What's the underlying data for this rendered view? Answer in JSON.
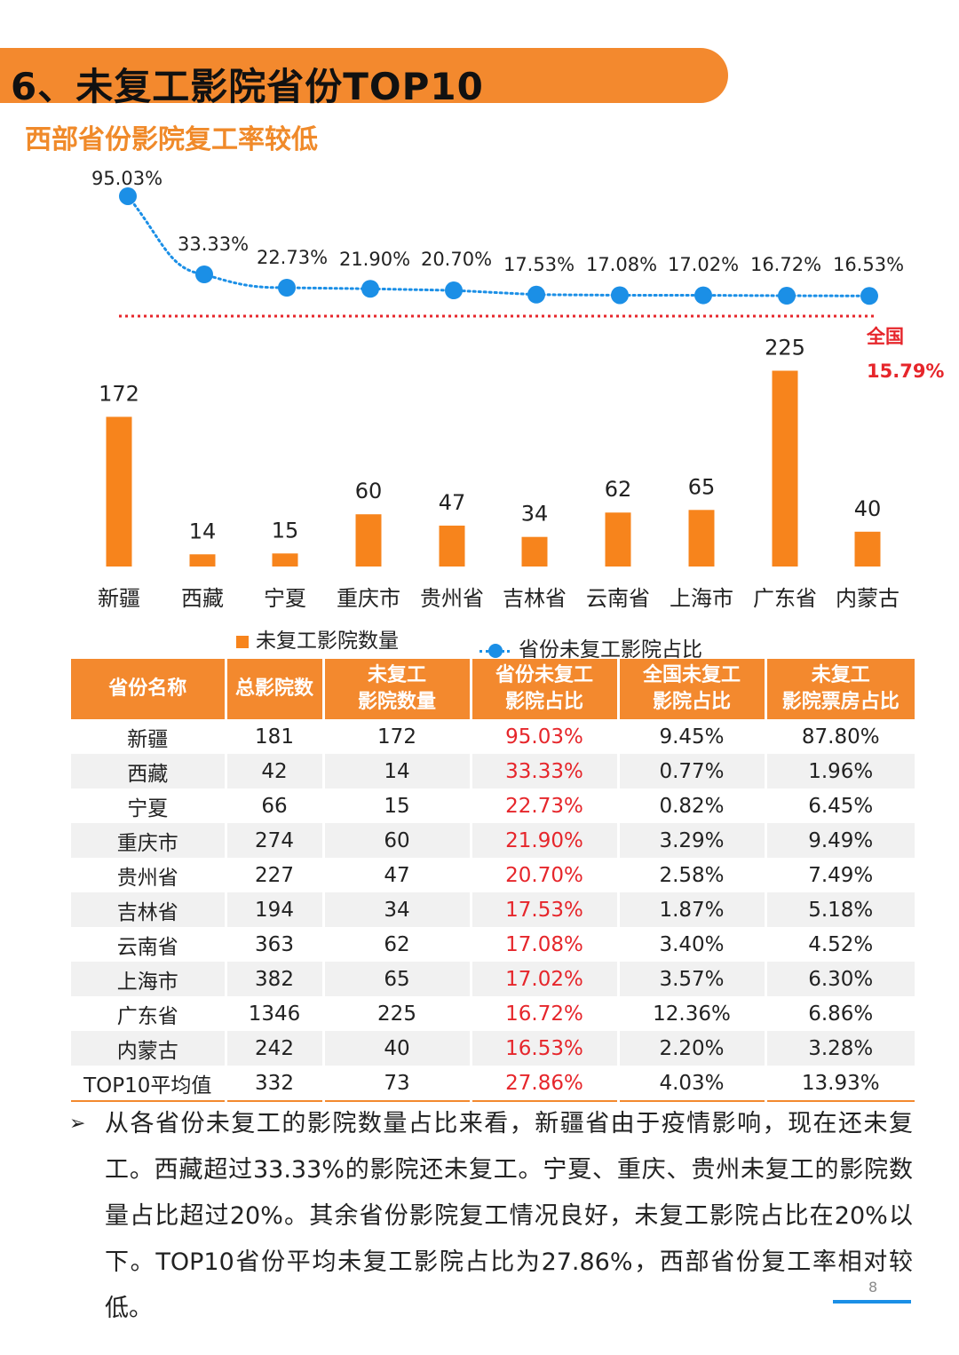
{
  "header": {
    "title": "6、未复工影院省份TOP10",
    "subtitle": "西部省份影院复工率较低"
  },
  "colors": {
    "accent": "#f3892e",
    "bar": "#f7841c",
    "line": "#1b8fe6",
    "red": "#e6262b"
  },
  "chart_data": {
    "type": "bar+line",
    "categories": [
      "新疆",
      "西藏",
      "宁夏",
      "重庆市",
      "贵州省",
      "吉林省",
      "云南省",
      "上海市",
      "广东省",
      "内蒙古"
    ],
    "series": [
      {
        "name": "未复工影院数量",
        "type": "bar",
        "values": [
          172,
          14,
          15,
          60,
          47,
          34,
          62,
          65,
          225,
          40
        ],
        "labels": [
          "172",
          "14",
          "15",
          "60",
          "47",
          "34",
          "62",
          "65",
          "225",
          "40"
        ]
      },
      {
        "name": "省份未复工影院占比",
        "type": "line",
        "values": [
          95.03,
          33.33,
          22.73,
          21.9,
          20.7,
          17.53,
          17.08,
          17.02,
          16.72,
          16.53
        ],
        "labels": [
          "95.03%",
          "33.33%",
          "22.73%",
          "21.90%",
          "20.70%",
          "17.53%",
          "17.08%",
          "17.02%",
          "16.72%",
          "16.53%"
        ]
      }
    ],
    "reference_line": {
      "value": 15.79,
      "label_name": "全国",
      "label_value": "15.79%"
    }
  },
  "table": {
    "headers": [
      [
        "省份名称"
      ],
      [
        "总影院数"
      ],
      [
        "未复工",
        "影院数量"
      ],
      [
        "省份未复工",
        "影院占比"
      ],
      [
        "全国未复工",
        "影院占比"
      ],
      [
        "未复工",
        "影院票房占比"
      ]
    ],
    "rows": [
      [
        "新疆",
        "181",
        "172",
        "95.03%",
        "9.45%",
        "87.80%"
      ],
      [
        "西藏",
        "42",
        "14",
        "33.33%",
        "0.77%",
        "1.96%"
      ],
      [
        "宁夏",
        "66",
        "15",
        "22.73%",
        "0.82%",
        "6.45%"
      ],
      [
        "重庆市",
        "274",
        "60",
        "21.90%",
        "3.29%",
        "9.49%"
      ],
      [
        "贵州省",
        "227",
        "47",
        "20.70%",
        "2.58%",
        "7.49%"
      ],
      [
        "吉林省",
        "194",
        "34",
        "17.53%",
        "1.87%",
        "5.18%"
      ],
      [
        "云南省",
        "363",
        "62",
        "17.08%",
        "3.40%",
        "4.52%"
      ],
      [
        "上海市",
        "382",
        "65",
        "17.02%",
        "3.57%",
        "6.30%"
      ],
      [
        "广东省",
        "1346",
        "225",
        "16.72%",
        "12.36%",
        "6.86%"
      ],
      [
        "内蒙古",
        "242",
        "40",
        "16.53%",
        "2.20%",
        "3.28%"
      ],
      [
        "TOP10平均值",
        "332",
        "73",
        "27.86%",
        "4.03%",
        "13.93%"
      ]
    ]
  },
  "summary": {
    "bullet": "➢",
    "text": "从各省份未复工的影院数量占比来看，新疆省由于疫情影响，现在还未复工。西藏超过33.33%的影院还未复工。宁夏、重庆、贵州未复工的影院数量占比超过20%。其余省份影院复工情况良好，未复工影院占比在20%以下。TOP10省份平均未复工影院占比为27.86%，西部省份复工率相对较低。"
  },
  "footer": {
    "page_number": "8"
  }
}
